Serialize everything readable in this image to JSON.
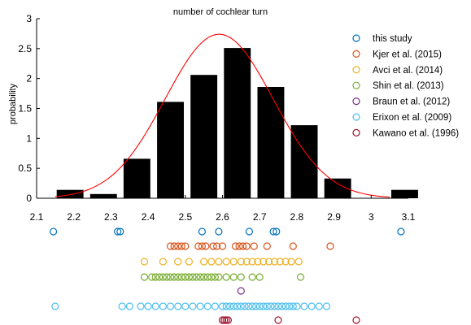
{
  "chart_data": {
    "type": "bar",
    "title": "number of cochlear turn",
    "xlabel": "",
    "ylabel": "probability",
    "xlim": [
      2.1,
      3.1
    ],
    "ylim": [
      0,
      3
    ],
    "xticks": [
      "2.1",
      "2.2",
      "2.3",
      "2.4",
      "2.5",
      "2.6",
      "2.7",
      "2.8",
      "2.9",
      "3",
      "3.1"
    ],
    "yticks": [
      "0",
      "0.5",
      "1",
      "1.5",
      "2",
      "2.5",
      "3"
    ],
    "bar_color": "#000000",
    "bars": [
      {
        "x": 2.19,
        "value": 0.14
      },
      {
        "x": 2.28,
        "value": 0.07
      },
      {
        "x": 2.37,
        "value": 0.66
      },
      {
        "x": 2.46,
        "value": 1.61
      },
      {
        "x": 2.55,
        "value": 2.06
      },
      {
        "x": 2.64,
        "value": 2.51
      },
      {
        "x": 2.73,
        "value": 1.86
      },
      {
        "x": 2.82,
        "value": 1.22
      },
      {
        "x": 2.91,
        "value": 0.33
      },
      {
        "x": 3.09,
        "value": 0.14
      }
    ],
    "bar_width": 0.072,
    "fit_curve": {
      "type": "normal",
      "mean": 2.591,
      "sd": 0.145,
      "peak": 2.74,
      "color": "#ff0000",
      "x_range": [
        2.15,
        3.05
      ]
    },
    "legend": {
      "placement": "top-right"
    },
    "series": [
      {
        "name": "this study",
        "color": "#0072bd",
        "x": [
          2.145,
          2.318,
          2.325,
          2.545,
          2.59,
          2.672,
          2.737,
          2.745,
          3.08
        ]
      },
      {
        "name": "Kjer et al. (2015)",
        "color": "#d95319",
        "x": [
          2.46,
          2.47,
          2.48,
          2.49,
          2.5,
          2.535,
          2.545,
          2.555,
          2.575,
          2.585,
          2.6,
          2.635,
          2.645,
          2.655,
          2.665,
          2.685,
          2.72,
          2.79,
          2.89
        ]
      },
      {
        "name": "Avci et al. (2014)",
        "color": "#edb120",
        "x": [
          2.39,
          2.44,
          2.48,
          2.51,
          2.55,
          2.57,
          2.59,
          2.61,
          2.63,
          2.65,
          2.665,
          2.68,
          2.695,
          2.71,
          2.725,
          2.74,
          2.755,
          2.77,
          2.785,
          2.805
        ]
      },
      {
        "name": "Shin et al. (2013)",
        "color": "#77ac30",
        "x": [
          2.39,
          2.41,
          2.42,
          2.43,
          2.44,
          2.45,
          2.46,
          2.47,
          2.48,
          2.49,
          2.5,
          2.51,
          2.52,
          2.53,
          2.54,
          2.55,
          2.56,
          2.57,
          2.58,
          2.59,
          2.61,
          2.63,
          2.65,
          2.68,
          2.7,
          2.81
        ]
      },
      {
        "name": "Braun et al. (2012)",
        "color": "#7e2f8e",
        "x": [
          2.65
        ]
      },
      {
        "name": "Erixon et al. (2009)",
        "color": "#4dbeee",
        "x": [
          2.15,
          2.33,
          2.35,
          2.38,
          2.4,
          2.42,
          2.44,
          2.46,
          2.48,
          2.5,
          2.52,
          2.54,
          2.56,
          2.58,
          2.6,
          2.61,
          2.62,
          2.63,
          2.64,
          2.65,
          2.66,
          2.67,
          2.68,
          2.69,
          2.7,
          2.71,
          2.72,
          2.73,
          2.74,
          2.75,
          2.76,
          2.77,
          2.78,
          2.79,
          2.8,
          2.82,
          2.84,
          2.86,
          2.88
        ]
      },
      {
        "name": "Kawano et al. (1996)",
        "color": "#a2142f",
        "x": [
          2.6,
          2.605,
          2.61,
          2.615,
          2.75,
          2.96
        ]
      }
    ]
  }
}
